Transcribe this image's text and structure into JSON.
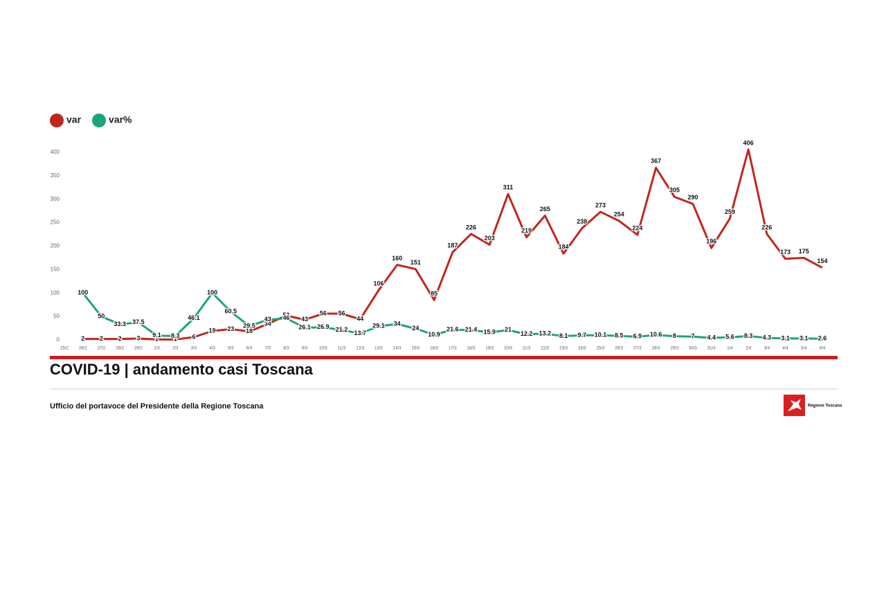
{
  "chart_data": {
    "type": "line",
    "title": "COVID-19 | andamento casi Toscana",
    "source": "Ufficio del portavoce del Presidente della Regione Toscana",
    "logo": "Regione Toscana",
    "categories": [
      "25/2",
      "26/2",
      "27/2",
      "28/2",
      "29/2",
      "1/3",
      "2/3",
      "3/3",
      "4/3",
      "5/3",
      "6/3",
      "7/3",
      "8/3",
      "9/3",
      "10/3",
      "11/3",
      "12/3",
      "13/3",
      "14/3",
      "15/3",
      "16/3",
      "17/3",
      "18/3",
      "19/3",
      "20/3",
      "21/3",
      "22/3",
      "23/3",
      "24/3",
      "25/3",
      "26/3",
      "27/3",
      "28/3",
      "29/3",
      "30/3",
      "31/3",
      "1/4",
      "2/4",
      "3/4",
      "4/4",
      "5/4",
      "6/4"
    ],
    "series": [
      {
        "name": "var",
        "color": "#c0261c",
        "values": [
          null,
          2,
          2,
          2,
          3,
          1,
          1,
          6,
          19,
          23,
          18,
          34,
          52,
          43,
          56,
          56,
          44,
          106,
          160,
          151,
          85,
          187,
          226,
          203,
          311,
          219,
          265,
          184,
          238,
          273,
          254,
          224,
          367,
          305,
          290,
          196,
          259,
          406,
          226,
          173,
          175,
          154
        ]
      },
      {
        "name": "var%",
        "color": "#1aa57a",
        "values": [
          null,
          100,
          50,
          33.3,
          37.5,
          9.1,
          8.3,
          46.1,
          100,
          60.5,
          29.5,
          43,
          46,
          26.1,
          26.9,
          21.2,
          13.7,
          29.1,
          34,
          24,
          10.9,
          21.6,
          21.4,
          15.9,
          21,
          12.2,
          13.2,
          8.1,
          9.7,
          10.1,
          8.5,
          6.9,
          10.6,
          8,
          7,
          4.4,
          5.6,
          8.3,
          4.3,
          3.1,
          3.1,
          2.6
        ]
      }
    ],
    "ylim": [
      0,
      400
    ],
    "yticks": [
      0,
      50,
      100,
      150,
      200,
      250,
      300,
      350,
      400
    ],
    "grid": false,
    "legend": "top-left"
  }
}
